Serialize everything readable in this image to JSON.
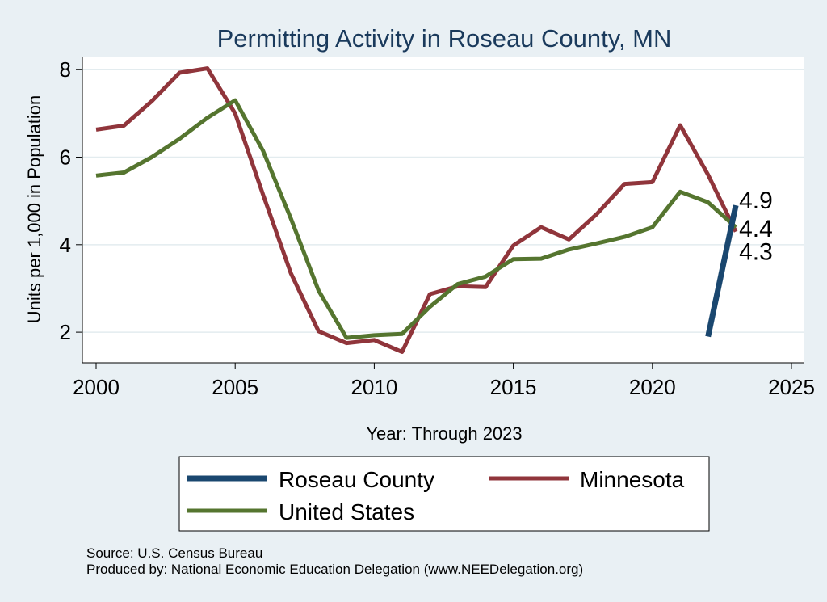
{
  "chart_data": {
    "type": "line",
    "title": "Permitting Activity in Roseau County, MN",
    "xlabel": "Year: Through 2023",
    "ylabel": "Units per 1,000 in Population",
    "xlim": [
      2000,
      2025
    ],
    "ylim": [
      1.3,
      8.3
    ],
    "x_ticks": [
      "2000",
      "2005",
      "2010",
      "2015",
      "2020",
      "2025"
    ],
    "y_ticks": [
      "2",
      "4",
      "6",
      "8"
    ],
    "grid": true,
    "legend_position": "bottom",
    "series": [
      {
        "name": "Roseau County",
        "color": "#1a476f",
        "x": [
          2022,
          2023
        ],
        "y": [
          1.9,
          4.9
        ],
        "end_label": "4.9"
      },
      {
        "name": "Minnesota",
        "color": "#90353b",
        "x": [
          2000,
          2001,
          2002,
          2003,
          2004,
          2005,
          2006,
          2007,
          2008,
          2009,
          2010,
          2011,
          2012,
          2013,
          2014,
          2015,
          2016,
          2017,
          2018,
          2019,
          2020,
          2021,
          2022,
          2023
        ],
        "y": [
          6.63,
          6.72,
          7.28,
          7.93,
          8.03,
          7.0,
          5.15,
          3.35,
          2.02,
          1.75,
          1.82,
          1.55,
          2.87,
          3.05,
          3.03,
          3.98,
          4.4,
          4.12,
          4.7,
          5.39,
          5.43,
          6.73,
          5.6,
          4.3
        ],
        "end_label": "4.3"
      },
      {
        "name": "United States",
        "color": "#55752f",
        "x": [
          2000,
          2001,
          2002,
          2003,
          2004,
          2005,
          2006,
          2007,
          2008,
          2009,
          2010,
          2011,
          2012,
          2013,
          2014,
          2015,
          2016,
          2017,
          2018,
          2019,
          2020,
          2021,
          2022,
          2023
        ],
        "y": [
          5.58,
          5.65,
          6.0,
          6.42,
          6.9,
          7.3,
          6.15,
          4.6,
          2.95,
          1.87,
          1.93,
          1.96,
          2.58,
          3.1,
          3.27,
          3.67,
          3.68,
          3.89,
          4.03,
          4.18,
          4.4,
          5.21,
          4.97,
          4.4
        ],
        "end_label": "4.4"
      }
    ],
    "notes": [
      "Source: U.S. Census Bureau",
      "Produced by: National Economic Education Delegation (www.NEEDelegation.org)"
    ]
  }
}
